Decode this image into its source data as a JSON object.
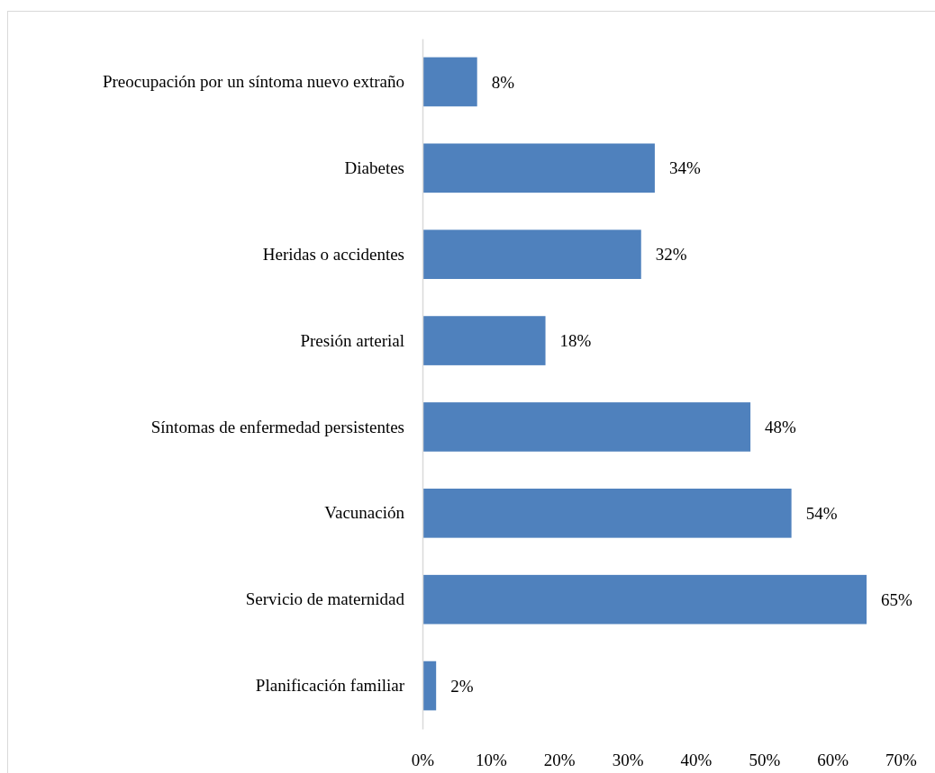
{
  "chart_data": {
    "type": "bar",
    "orientation": "horizontal",
    "categories": [
      "Preocupación por un síntoma nuevo extraño",
      "Diabetes",
      "Heridas o accidentes",
      "Presión arterial",
      "Síntomas de enfermedad persistentes",
      "Vacunación",
      "Servicio de maternidad",
      "Planificación familiar"
    ],
    "values": [
      8,
      34,
      32,
      18,
      48,
      54,
      65,
      2
    ],
    "value_labels": [
      "8%",
      "34%",
      "32%",
      "18%",
      "48%",
      "54%",
      "65%",
      "2%"
    ],
    "color": "#4f81bd",
    "xlim": [
      0,
      70
    ],
    "xticks": [
      {
        "value": 0,
        "label": "0%"
      },
      {
        "value": 10,
        "label": "10%"
      },
      {
        "value": 20,
        "label": "20%"
      },
      {
        "value": 30,
        "label": "30%"
      },
      {
        "value": 40,
        "label": "40%"
      },
      {
        "value": 50,
        "label": "50%"
      },
      {
        "value": 60,
        "label": "60%"
      },
      {
        "value": 70,
        "label": "70%"
      }
    ],
    "grid": false
  }
}
